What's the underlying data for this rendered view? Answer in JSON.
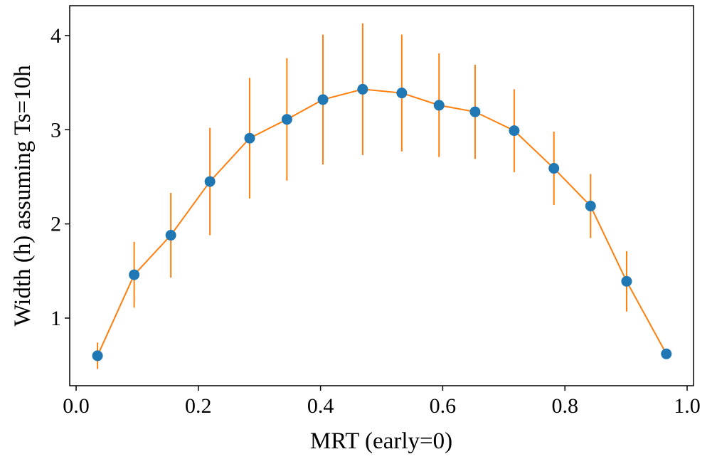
{
  "chart_data": {
    "type": "errorbar",
    "xlabel": "MRT (early=0)",
    "ylabel": "Width (h) assuming Ts=10h",
    "x": [
      0.035,
      0.095,
      0.155,
      0.219,
      0.284,
      0.345,
      0.404,
      0.469,
      0.533,
      0.594,
      0.653,
      0.717,
      0.782,
      0.842,
      0.901,
      0.966
    ],
    "values": [
      0.6,
      1.46,
      1.88,
      2.45,
      2.91,
      3.11,
      3.32,
      3.43,
      3.39,
      3.26,
      3.19,
      2.99,
      2.59,
      2.19,
      1.39,
      0.62
    ],
    "errors": [
      0.14,
      0.35,
      0.45,
      0.57,
      0.64,
      0.65,
      0.69,
      0.7,
      0.62,
      0.55,
      0.5,
      0.44,
      0.39,
      0.34,
      0.32,
      null
    ],
    "marker_color": "#1f77b4",
    "line_color": "#ff7f0e",
    "xlim": [
      -0.0105,
      1.0105
    ],
    "xticks": [
      {
        "value": 0,
        "label": "0.0"
      },
      {
        "value": 0.2,
        "label": "0.2"
      },
      {
        "value": 0.4,
        "label": "0.4"
      },
      {
        "value": 0.6,
        "label": "0.6"
      },
      {
        "value": 0.8,
        "label": "0.8"
      },
      {
        "value": 1,
        "label": "1.0"
      }
    ],
    "ylim": [
      0.282,
      4.317
    ],
    "yticks": [
      1,
      2,
      3,
      4
    ],
    "grid": false
  }
}
